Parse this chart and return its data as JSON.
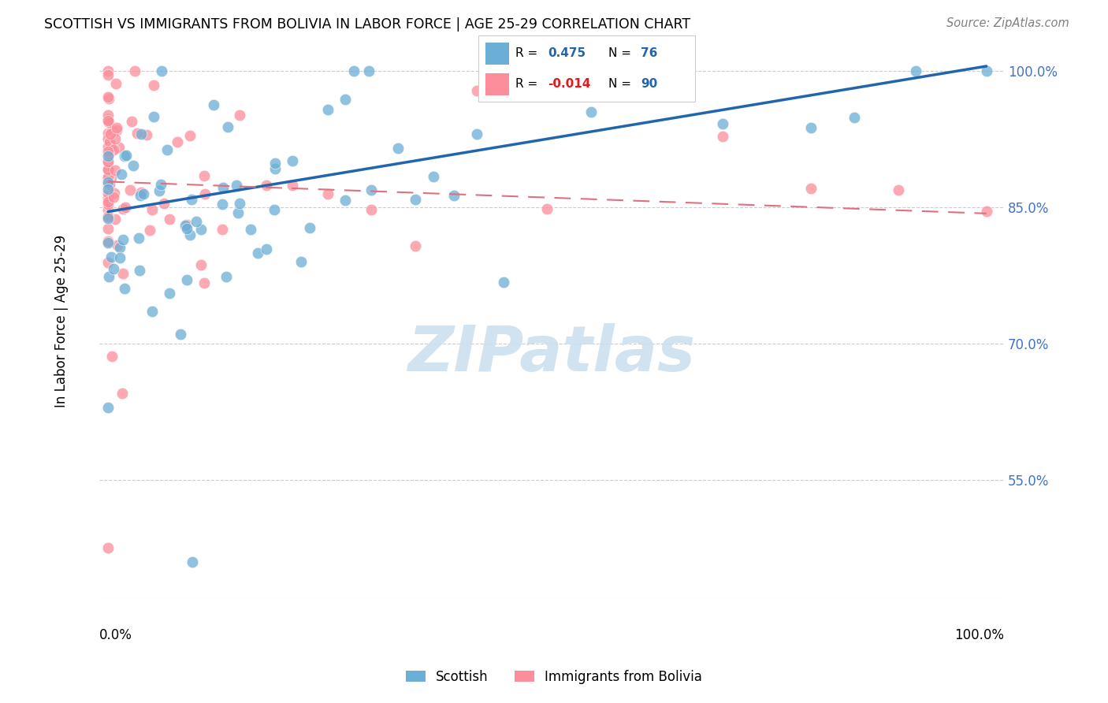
{
  "title": "SCOTTISH VS IMMIGRANTS FROM BOLIVIA IN LABOR FORCE | AGE 25-29 CORRELATION CHART",
  "source": "Source: ZipAtlas.com",
  "ylabel": "In Labor Force | Age 25-29",
  "ytick_values": [
    0.55,
    0.7,
    0.85,
    1.0
  ],
  "ytick_labels": [
    "55.0%",
    "70.0%",
    "85.0%",
    "100.0%"
  ],
  "xlim": [
    -0.01,
    1.02
  ],
  "ylim": [
    0.42,
    1.03
  ],
  "r_scottish": 0.475,
  "n_scottish": 76,
  "r_bolivia": -0.014,
  "n_bolivia": 90,
  "scottish_color": "#6baed6",
  "bolivia_color": "#fc8d9a",
  "trendline_scottish_color": "#2166ac",
  "trendline_bolivia_color": "#e07080",
  "sc_trend_x": [
    0.0,
    1.0
  ],
  "sc_trend_y": [
    0.845,
    1.005
  ],
  "bo_trend_x": [
    0.0,
    1.0
  ],
  "bo_trend_y": [
    0.878,
    0.843
  ],
  "watermark_text": "ZIPatlas",
  "legend_r_color": "#e31a1c",
  "legend_n_color": "#2166ac"
}
